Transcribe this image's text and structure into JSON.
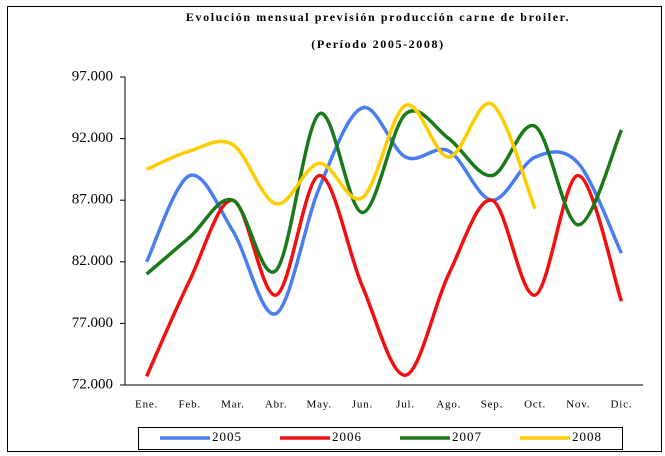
{
  "chart_data": {
    "type": "line",
    "title": "Evolución mensual previsión producción carne de broiler.",
    "subtitle": "(Período 2005-2008)",
    "categories": [
      "Ene.",
      "Feb.",
      "Mar.",
      "Abr.",
      "May.",
      "Jun.",
      "Jul.",
      "Ago.",
      "Sep.",
      "Oct.",
      "Nov.",
      "Dic."
    ],
    "series": [
      {
        "name": "2005",
        "color": "#4a7ef0",
        "values": [
          82000,
          89000,
          84500,
          77800,
          88000,
          94500,
          90500,
          91000,
          87000,
          90500,
          90000,
          82700
        ]
      },
      {
        "name": "2006",
        "color": "#f01010",
        "values": [
          72700,
          80500,
          87000,
          79300,
          89000,
          80000,
          72800,
          81000,
          87000,
          79300,
          89000,
          78800
        ]
      },
      {
        "name": "2007",
        "color": "#1a7a1a",
        "values": [
          81000,
          84000,
          87000,
          81300,
          94000,
          86000,
          94000,
          92000,
          89000,
          93000,
          85000,
          92700
        ]
      },
      {
        "name": "2008",
        "color": "#ffcc00",
        "values": [
          89500,
          91000,
          91500,
          86700,
          90000,
          87200,
          94700,
          90500,
          94800,
          86300,
          null,
          null
        ]
      }
    ],
    "ylim": [
      72000,
      97000
    ],
    "yticks": [
      {
        "value": 72000,
        "label": "72.000"
      },
      {
        "value": 77000,
        "label": "77.000"
      },
      {
        "value": 82000,
        "label": "82.000"
      },
      {
        "value": 87000,
        "label": "87.000"
      },
      {
        "value": 92000,
        "label": "92.000"
      },
      {
        "value": 97000,
        "label": "97.000"
      }
    ],
    "legend": "bottom"
  }
}
